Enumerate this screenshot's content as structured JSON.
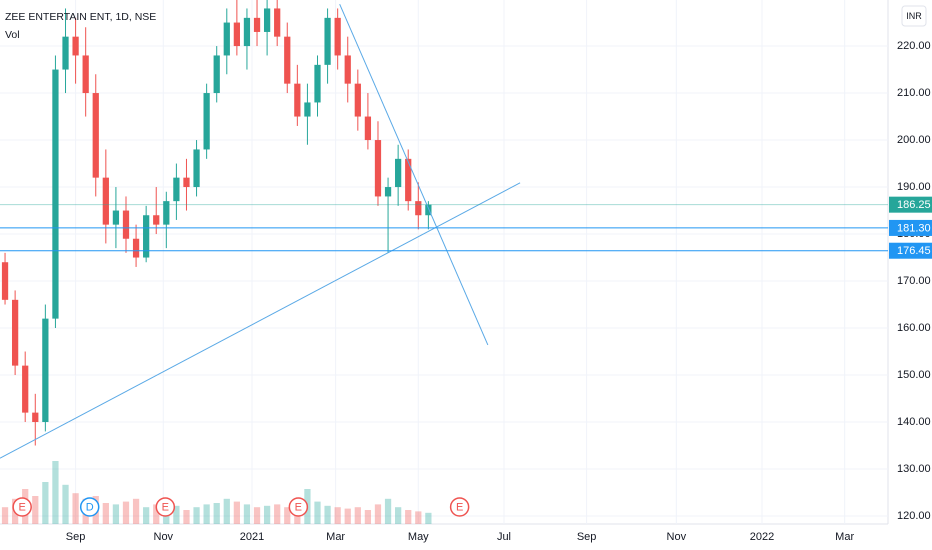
{
  "chart_data": {
    "type": "candlestick",
    "title": "ZEE ENTERTAIN ENT, 1D, NSE",
    "volume_label": "Vol",
    "currency": "INR",
    "up_color": "#26a69a",
    "down_color": "#ef5350",
    "open": [
      174,
      166,
      152,
      142,
      140,
      162,
      215,
      222,
      218,
      210,
      192,
      182,
      185,
      179,
      175,
      184,
      182,
      187,
      192,
      190,
      198,
      210,
      218,
      225,
      220,
      226,
      223,
      228,
      222,
      212,
      205,
      208,
      216,
      226,
      218,
      212,
      205,
      200,
      188,
      190,
      196,
      187,
      184
    ],
    "high": [
      176,
      168,
      155,
      146,
      165,
      218,
      228,
      226,
      224,
      214,
      198,
      190,
      188,
      182,
      186,
      190,
      189,
      195,
      196,
      200,
      212,
      220,
      228,
      232,
      228,
      231,
      230,
      232,
      225,
      216,
      212,
      218,
      228,
      228,
      222,
      215,
      210,
      204,
      192,
      199,
      198,
      191,
      187
    ],
    "low": [
      165,
      150,
      140,
      135,
      138,
      160,
      210,
      212,
      205,
      188,
      178,
      177,
      176,
      173,
      174,
      180,
      177,
      183,
      185,
      188,
      196,
      208,
      214,
      218,
      215,
      220,
      218,
      220,
      210,
      203,
      199,
      205,
      212,
      215,
      208,
      202,
      198,
      186,
      176,
      186,
      185,
      181,
      181
    ],
    "close": [
      166,
      152,
      142,
      140,
      162,
      215,
      222,
      218,
      210,
      192,
      182,
      185,
      179,
      175,
      184,
      182,
      187,
      192,
      190,
      198,
      210,
      218,
      225,
      220,
      226,
      223,
      228,
      222,
      212,
      205,
      208,
      216,
      226,
      218,
      212,
      205,
      200,
      188,
      190,
      196,
      187,
      184,
      186.25
    ],
    "volume": [
      12,
      18,
      25,
      20,
      30,
      45,
      28,
      22,
      18,
      20,
      15,
      14,
      16,
      18,
      12,
      14,
      11,
      13,
      10,
      12,
      14,
      15,
      18,
      16,
      14,
      12,
      13,
      14,
      12,
      11,
      25,
      16,
      13,
      12,
      11,
      12,
      10,
      14,
      18,
      12,
      10,
      9,
      8
    ],
    "ylim": [
      118.3,
      229.8
    ],
    "yticks": [
      {
        "value": 120,
        "label": "120.00"
      },
      {
        "value": 130,
        "label": "130.00"
      },
      {
        "value": 140,
        "label": "140.00"
      },
      {
        "value": 150,
        "label": "150.00"
      },
      {
        "value": 160,
        "label": "160.00"
      },
      {
        "value": 170,
        "label": "170.00"
      },
      {
        "value": 180,
        "label": "180.00"
      },
      {
        "value": 190,
        "label": "190.00"
      },
      {
        "value": 200,
        "label": "200.00"
      },
      {
        "value": 210,
        "label": "210.00"
      },
      {
        "value": 220,
        "label": "220.00"
      }
    ],
    "xlim": [
      -0.5,
      87.6
    ],
    "xticks": [
      {
        "value": 7,
        "label": "Sep"
      },
      {
        "value": 15.7,
        "label": "Nov"
      },
      {
        "value": 24.5,
        "label": "2021"
      },
      {
        "value": 32.8,
        "label": "Mar"
      },
      {
        "value": 41,
        "label": "May"
      },
      {
        "value": 49.5,
        "label": "Jul"
      },
      {
        "value": 57.7,
        "label": "Sep"
      },
      {
        "value": 66.6,
        "label": "Nov"
      },
      {
        "value": 75.1,
        "label": "2022"
      },
      {
        "value": 83.3,
        "label": "Mar"
      }
    ],
    "grid": true,
    "price_lines": [
      {
        "value": 186.25,
        "color": "#26a69a"
      },
      {
        "value": 181.3,
        "label": "181.30",
        "color": "#2196f3"
      },
      {
        "value": 176.45,
        "color": "#2196f3"
      }
    ],
    "trend_lines": [
      {
        "x": [
          33.2,
          47.9
        ],
        "y": [
          228.9,
          156.4
        ],
        "color": "#5aa9e6"
      },
      {
        "x": [
          -0.5,
          51.1
        ],
        "y": [
          132.3,
          190.9
        ],
        "color": "#5aa9e6"
      }
    ],
    "events": [
      {
        "label": "E",
        "x": 1.7
      },
      {
        "label": "D",
        "x": 8.4
      },
      {
        "label": "E",
        "x": 15.9
      },
      {
        "label": "E",
        "x": 29.1
      },
      {
        "label": "E",
        "x": 45.1
      }
    ]
  }
}
